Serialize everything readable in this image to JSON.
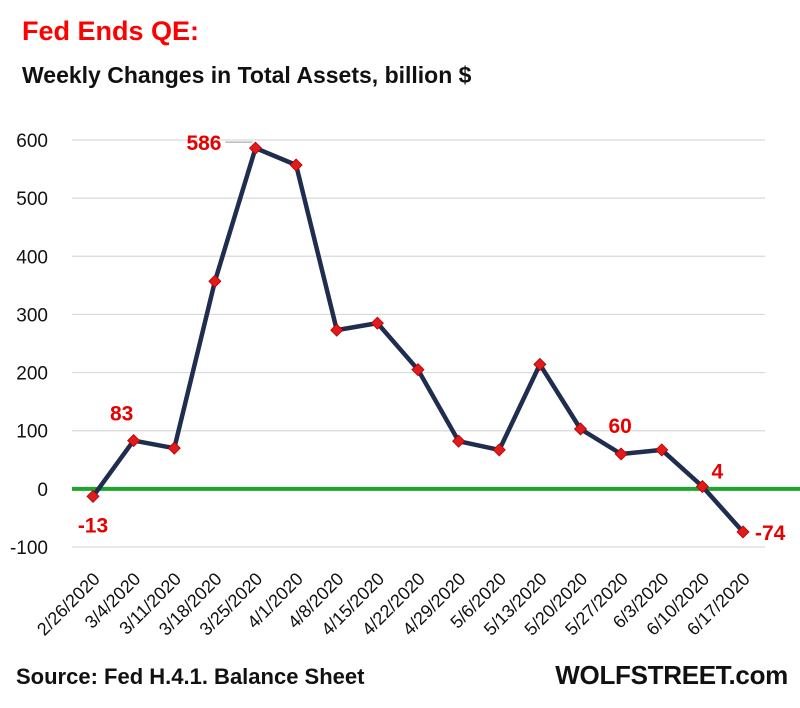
{
  "colors": {
    "title": "#ff0000",
    "line": "#1f2d4e",
    "marker": "#e31a1c",
    "zero_line": "#1ea52d",
    "grid": "#d9d9d9",
    "annotation": "#e60000"
  },
  "title": "Fed Ends  QE:",
  "subtitle": "Weekly Changes in Total Assets, billion $",
  "source": "Source: Fed H.4.1. Balance Sheet",
  "brand": "WOLFSTREET.com",
  "chart_data": {
    "type": "line",
    "title": "Fed Ends  QE:",
    "subtitle": "Weekly Changes in Total Assets, billion $",
    "xlabel": "",
    "ylabel": "",
    "categories": [
      "2/26/2020",
      "3/4/2020",
      "3/11/2020",
      "3/18/2020",
      "3/25/2020",
      "4/1/2020",
      "4/8/2020",
      "4/15/2020",
      "4/22/2020",
      "4/29/2020",
      "5/6/2020",
      "5/13/2020",
      "5/20/2020",
      "5/27/2020",
      "6/3/2020",
      "6/10/2020",
      "6/17/2020"
    ],
    "series": [
      {
        "values": [
          -13,
          83,
          70,
          357,
          586,
          557,
          273,
          285,
          205,
          82,
          67,
          214,
          103,
          60,
          67,
          4,
          -74
        ]
      }
    ],
    "ylim": [
      -100,
      600
    ],
    "yticks": [
      -100,
      0,
      100,
      200,
      300,
      400,
      500,
      600
    ],
    "grid": true,
    "legend": "none",
    "annotations": [
      {
        "index": 0,
        "text": "-13"
      },
      {
        "index": 1,
        "text": "83"
      },
      {
        "index": 4,
        "text": "586"
      },
      {
        "index": 13,
        "text": "60"
      },
      {
        "index": 15,
        "text": "4"
      },
      {
        "index": 16,
        "text": "-74"
      }
    ]
  }
}
